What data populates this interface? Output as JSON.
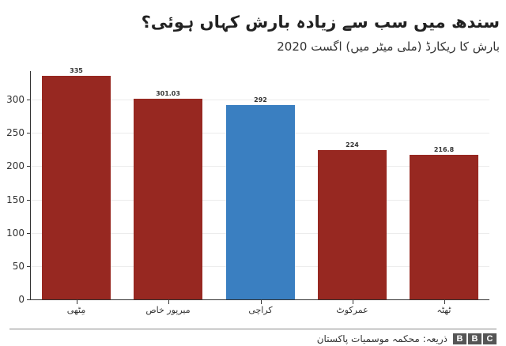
{
  "title": "سندھ میں سب سے زیادہ بارش کہاں ہوئی؟",
  "subtitle": "بارش کا ریکارڈ (ملی میٹر میں) اگست 2020",
  "footer": {
    "source": "ذریعہ: محکمہ موسمیات پاکستان",
    "logo": [
      "B",
      "B",
      "C"
    ]
  },
  "colors": {
    "default_bar": "#972821",
    "highlight_bar": "#3a7fc1"
  },
  "chart_data": {
    "type": "bar",
    "title": "سندھ میں سب سے زیادہ بارش کہاں ہوئی؟",
    "subtitle": "بارش کا ریکارڈ (ملی میٹر میں) اگست 2020",
    "xlabel": "",
    "ylabel": "",
    "categories": [
      "مِٹھی",
      "میرپور خاص",
      "کراچی",
      "عمرکوٹ",
      "ٹھٹہ"
    ],
    "values": [
      335,
      301.03,
      292,
      224,
      216.8
    ],
    "value_labels": [
      "335",
      "301.03",
      "292",
      "224",
      "216.8"
    ],
    "highlight_index": 2,
    "ylim": [
      0,
      335
    ],
    "yticks": [
      0,
      50,
      100,
      150,
      200,
      250,
      300
    ],
    "grid": true,
    "legend": null,
    "source": "ذریعہ: محکمہ موسمیات پاکستان"
  }
}
